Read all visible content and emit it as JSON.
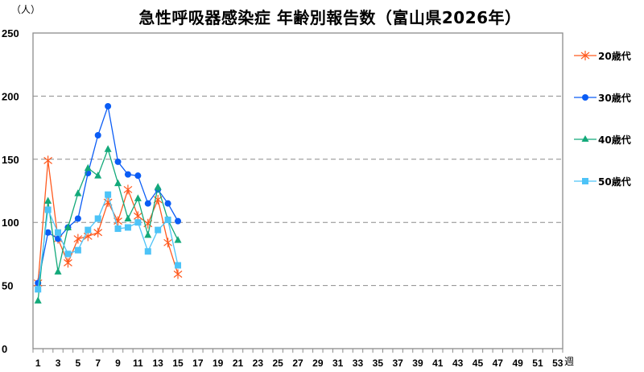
{
  "chart_data": {
    "type": "line",
    "title": "急性呼吸器感染症 年齢別報告数（富山県2026年）",
    "ylabel": "（人）",
    "xlabel": "週",
    "ylim": [
      0,
      250
    ],
    "yticks": [
      0,
      50,
      100,
      150,
      200,
      250
    ],
    "xlim": [
      1,
      53
    ],
    "xtick_labels": [
      "1",
      "3",
      "5",
      "7",
      "9",
      "11",
      "13",
      "15",
      "17",
      "19",
      "21",
      "23",
      "25",
      "27",
      "29",
      "31",
      "33",
      "35",
      "37",
      "39",
      "41",
      "43",
      "45",
      "47",
      "49",
      "51",
      "53"
    ],
    "grid": "horizontal dashed",
    "legend_position": "right",
    "x": [
      1,
      2,
      3,
      4,
      5,
      6,
      7,
      8,
      9,
      10,
      11,
      12,
      13,
      14,
      15
    ],
    "series": [
      {
        "name": "20歳代",
        "color": "#ff5a1f",
        "marker": "asterisk",
        "values": [
          52,
          149,
          87,
          68,
          87,
          89,
          92,
          116,
          101,
          126,
          105,
          99,
          118,
          84,
          59
        ]
      },
      {
        "name": "30歳代",
        "color": "#0a5cf5",
        "marker": "circle",
        "values": [
          52,
          92,
          87,
          96,
          103,
          139,
          169,
          192,
          148,
          138,
          137,
          115,
          126,
          115,
          101
        ]
      },
      {
        "name": "40歳代",
        "color": "#13a97a",
        "marker": "triangle",
        "values": [
          38,
          117,
          61,
          96,
          123,
          143,
          137,
          158,
          131,
          103,
          119,
          90,
          128,
          102,
          86
        ]
      },
      {
        "name": "50歳代",
        "color": "#4dc3f7",
        "marker": "square",
        "values": [
          47,
          110,
          92,
          75,
          78,
          94,
          103,
          122,
          95,
          96,
          100,
          77,
          94,
          102,
          66
        ]
      }
    ]
  },
  "header": {
    "title": "急性呼吸器感染症 年齢別報告数（富山県2026年）",
    "unit": "（人）"
  },
  "axis": {
    "x_unit": "週"
  },
  "legend": {
    "items": [
      {
        "label": "20歳代"
      },
      {
        "label": "30歳代"
      },
      {
        "label": "40歳代"
      },
      {
        "label": "50歳代"
      }
    ]
  }
}
